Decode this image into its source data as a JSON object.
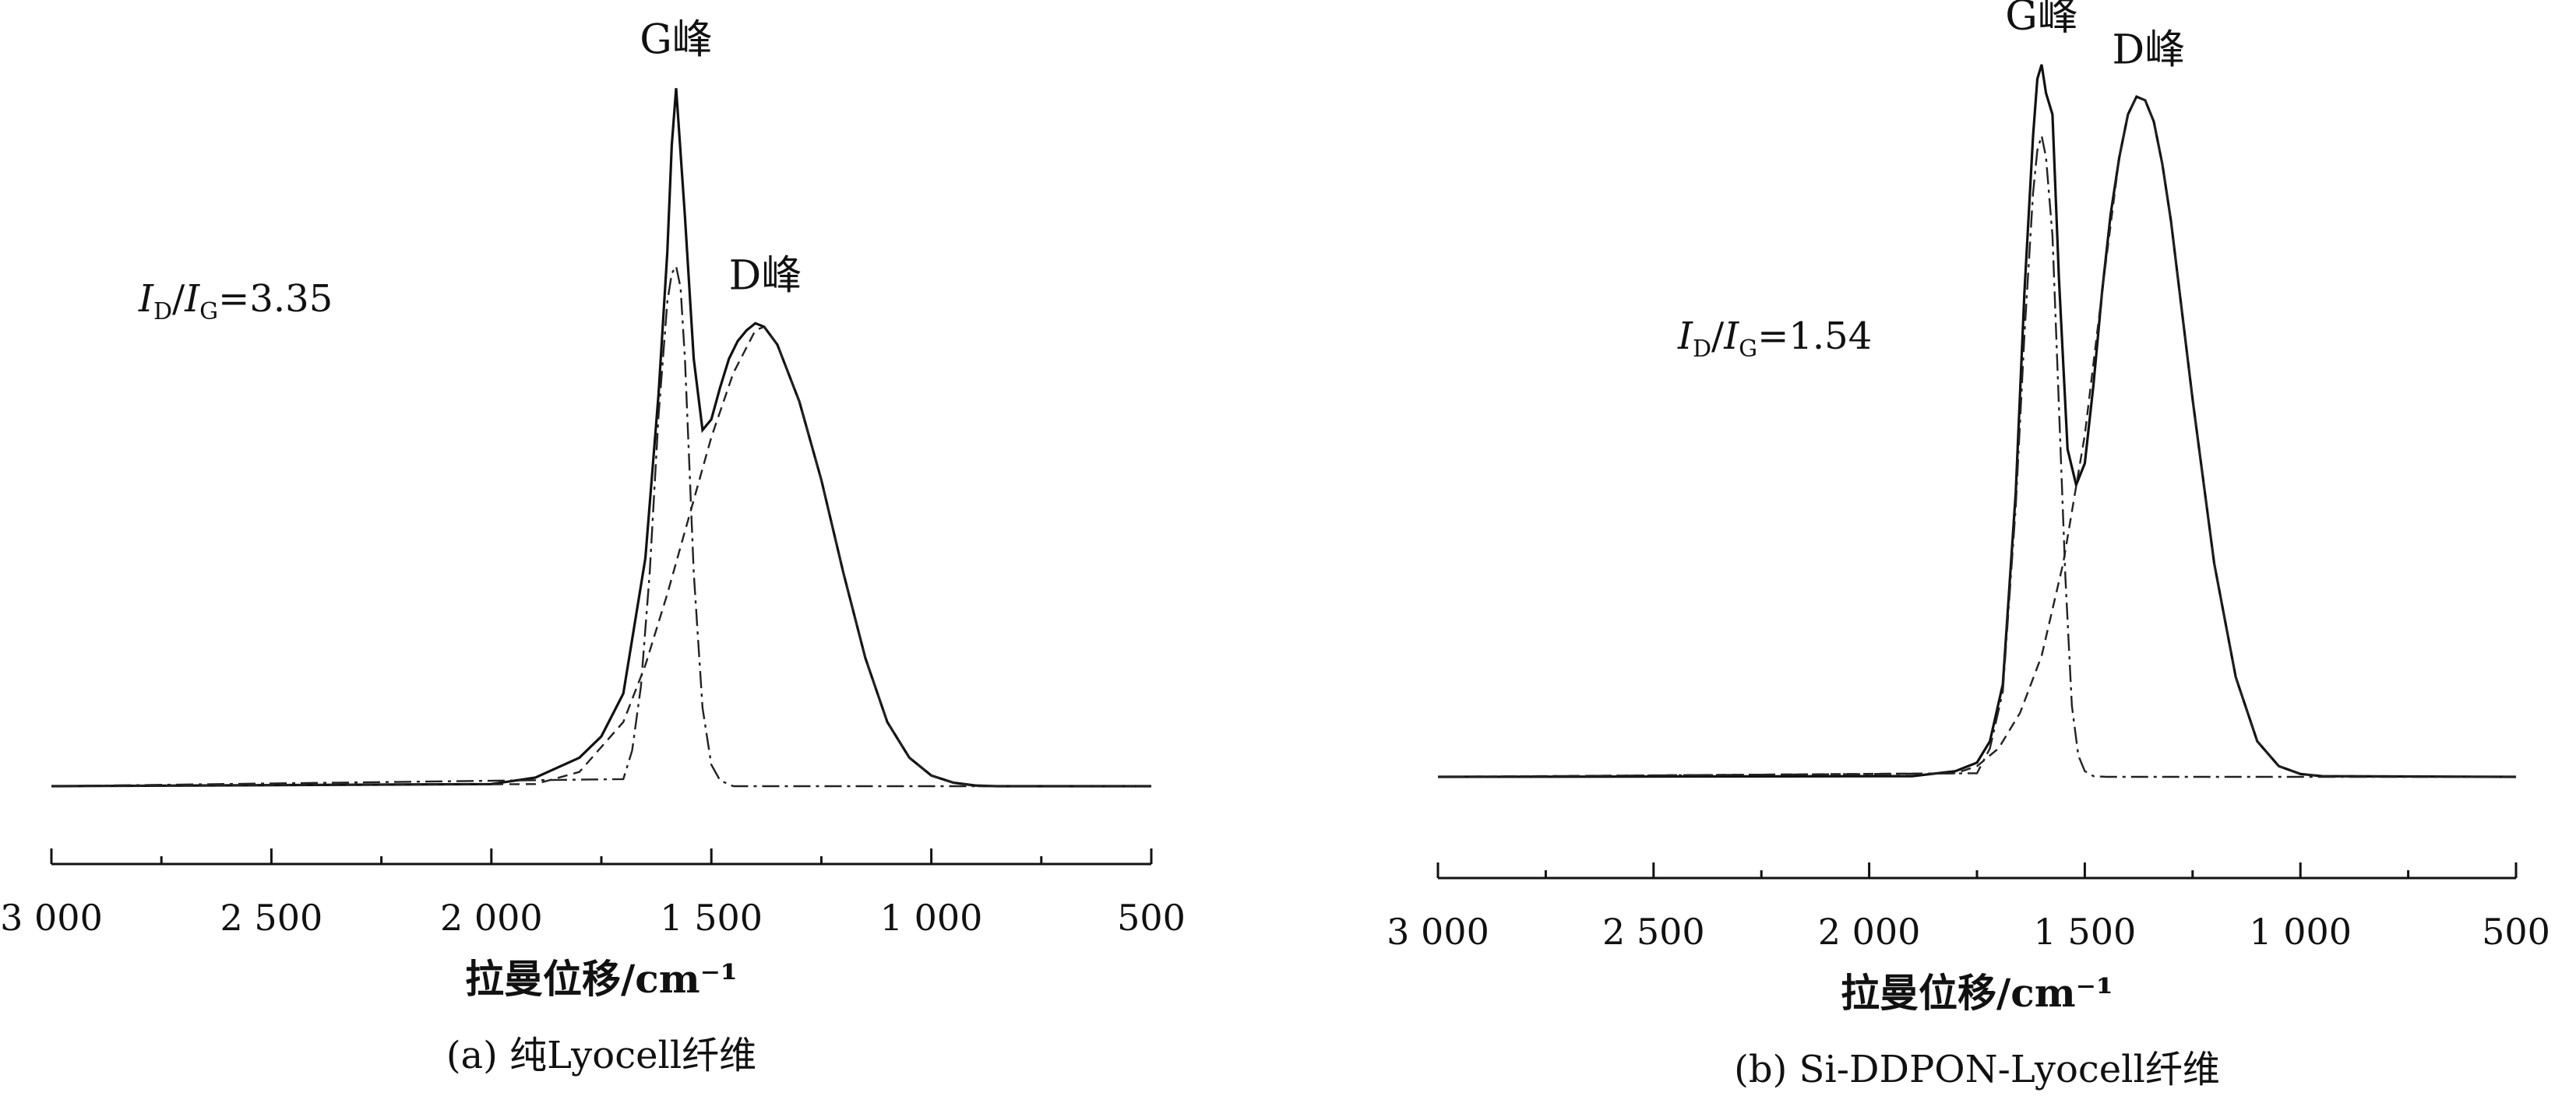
{
  "chart_data": [
    {
      "type": "line",
      "caption": "(a) 纯Lyocell纤维",
      "xlabel": "拉曼位移/cm⁻¹",
      "ylabel": "",
      "x_reversed": true,
      "xlim": [
        3000,
        500
      ],
      "xticks": [
        3000,
        2500,
        2000,
        1500,
        1000,
        500
      ],
      "xtick_labels": [
        "3 000",
        "2 500",
        "2 000",
        "1 500",
        "1 000",
        "500"
      ],
      "ratio": {
        "I": "I",
        "sub1": "D",
        "slash": "/",
        "sub2": "G",
        "value": "=3.35"
      },
      "annotations": [
        {
          "text": "G峰",
          "x": 1580
        },
        {
          "text": "D峰",
          "x": 1395
        }
      ],
      "series": [
        {
          "role": "total",
          "x": [
            3000,
            2000,
            1900,
            1800,
            1750,
            1700,
            1650,
            1620,
            1600,
            1590,
            1580,
            1560,
            1540,
            1520,
            1500,
            1480,
            1460,
            1440,
            1420,
            1400,
            1380,
            1350,
            1300,
            1250,
            1200,
            1150,
            1100,
            1050,
            1000,
            950,
            900,
            850,
            500
          ],
          "y": [
            0,
            0.003,
            0.012,
            0.04,
            0.07,
            0.13,
            0.32,
            0.55,
            0.75,
            0.9,
            0.98,
            0.8,
            0.6,
            0.5,
            0.515,
            0.56,
            0.6,
            0.625,
            0.64,
            0.65,
            0.645,
            0.62,
            0.54,
            0.43,
            0.3,
            0.18,
            0.09,
            0.04,
            0.015,
            0.005,
            0.001,
            0,
            0
          ]
        },
        {
          "role": "G-fit",
          "x": [
            3000,
            1700,
            1680,
            1660,
            1640,
            1620,
            1600,
            1590,
            1580,
            1570,
            1560,
            1550,
            1540,
            1520,
            1500,
            1480,
            1450,
            1400,
            500
          ],
          "y": [
            0,
            0.01,
            0.05,
            0.14,
            0.3,
            0.52,
            0.68,
            0.72,
            0.73,
            0.7,
            0.6,
            0.45,
            0.3,
            0.11,
            0.03,
            0.008,
            0,
            0,
            0
          ]
        },
        {
          "role": "D-fit",
          "x": [
            3000,
            1900,
            1800,
            1700,
            1650,
            1600,
            1550,
            1500,
            1450,
            1400,
            1380,
            1350,
            1300,
            1250,
            1200,
            1150,
            1100,
            1050,
            1000,
            950,
            900,
            500
          ],
          "y": [
            0,
            0.003,
            0.02,
            0.09,
            0.17,
            0.27,
            0.38,
            0.49,
            0.58,
            0.64,
            0.645,
            0.62,
            0.54,
            0.43,
            0.3,
            0.18,
            0.09,
            0.04,
            0.015,
            0.005,
            0,
            0
          ]
        }
      ]
    },
    {
      "type": "line",
      "caption": "(b) Si-DDPON-Lyocell纤维",
      "xlabel": "拉曼位移/cm⁻¹",
      "ylabel": "",
      "x_reversed": true,
      "xlim": [
        3000,
        500
      ],
      "xticks": [
        3000,
        2500,
        2000,
        1500,
        1000,
        500
      ],
      "xtick_labels": [
        "3 000",
        "2 500",
        "2 000",
        "1 500",
        "1 000",
        "500"
      ],
      "ratio": {
        "I": "I",
        "sub1": "D",
        "slash": "/",
        "sub2": "G",
        "value": "=1.54"
      },
      "annotations": [
        {
          "text": "G峰",
          "x": 1600
        },
        {
          "text": "D峰",
          "x": 1370
        }
      ],
      "series": [
        {
          "role": "total",
          "x": [
            3000,
            1900,
            1800,
            1750,
            1720,
            1690,
            1660,
            1640,
            1620,
            1610,
            1600,
            1590,
            1575,
            1560,
            1540,
            1520,
            1500,
            1480,
            1460,
            1440,
            1420,
            1400,
            1380,
            1360,
            1340,
            1320,
            1300,
            1250,
            1200,
            1150,
            1100,
            1050,
            1000,
            950,
            500
          ],
          "y": [
            0,
            0.001,
            0.008,
            0.02,
            0.05,
            0.13,
            0.4,
            0.68,
            0.9,
            0.98,
            1.0,
            0.96,
            0.93,
            0.7,
            0.46,
            0.41,
            0.44,
            0.55,
            0.68,
            0.79,
            0.87,
            0.93,
            0.955,
            0.95,
            0.92,
            0.86,
            0.78,
            0.53,
            0.3,
            0.14,
            0.05,
            0.015,
            0.004,
            0.001,
            0
          ]
        },
        {
          "role": "G-fit",
          "x": [
            3000,
            1750,
            1720,
            1690,
            1660,
            1640,
            1620,
            1610,
            1600,
            1590,
            1575,
            1560,
            1545,
            1530,
            1515,
            1500,
            1480,
            1450,
            500
          ],
          "y": [
            0,
            0.005,
            0.04,
            0.12,
            0.38,
            0.62,
            0.82,
            0.88,
            0.9,
            0.87,
            0.76,
            0.52,
            0.28,
            0.1,
            0.03,
            0.008,
            0.001,
            0,
            0
          ]
        },
        {
          "role": "D-fit",
          "x": [
            3000,
            1800,
            1750,
            1700,
            1650,
            1600,
            1550,
            1500,
            1460,
            1420,
            1400,
            1380,
            1360,
            1340,
            1320,
            1300,
            1250,
            1200,
            1150,
            1100,
            1050,
            1000,
            950,
            500
          ],
          "y": [
            0,
            0.005,
            0.015,
            0.04,
            0.09,
            0.17,
            0.3,
            0.48,
            0.68,
            0.87,
            0.93,
            0.955,
            0.95,
            0.92,
            0.86,
            0.78,
            0.53,
            0.3,
            0.14,
            0.05,
            0.015,
            0.004,
            0.001,
            0
          ]
        }
      ]
    }
  ]
}
